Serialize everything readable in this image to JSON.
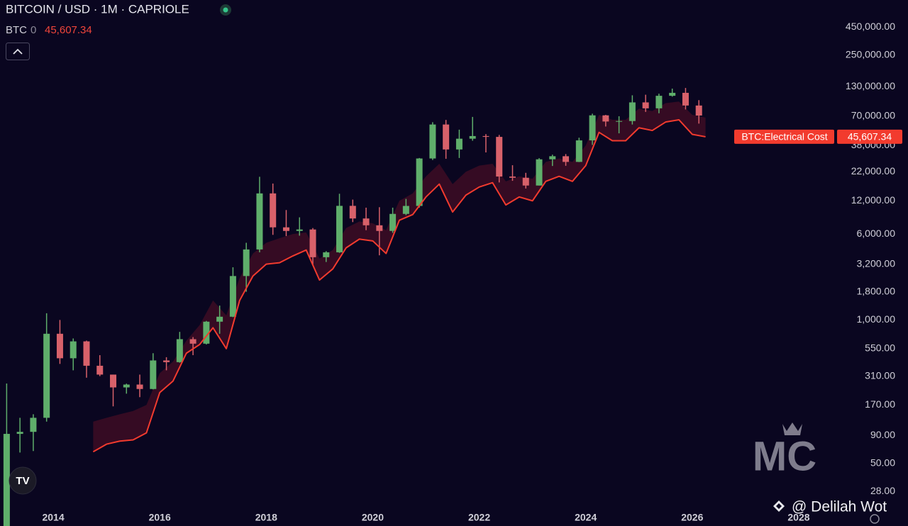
{
  "chart_data": {
    "type": "candlestick",
    "title": "BITCOIN / USD · 1M · CAPRIOLE",
    "legend_symbol": "BTC",
    "legend_flag": "0",
    "log_scale": true,
    "grid": false,
    "up_color": "#5fae6b",
    "down_color": "#d8616a",
    "xlim": [
      2013,
      2028.72
    ],
    "xticks": [
      2014,
      2016,
      2018,
      2020,
      2022,
      2024,
      2026,
      2028
    ],
    "ylim": [
      20,
      790000
    ],
    "yticks": [
      {
        "value": 28,
        "label": "28.00"
      },
      {
        "value": 50,
        "label": "50.00"
      },
      {
        "value": 90,
        "label": "90.00"
      },
      {
        "value": 170,
        "label": "170.00"
      },
      {
        "value": 310,
        "label": "310.00"
      },
      {
        "value": 550,
        "label": "550.00"
      },
      {
        "value": 1000,
        "label": "1,000.00"
      },
      {
        "value": 1800,
        "label": "1,800.00"
      },
      {
        "value": 3200,
        "label": "3,200.00"
      },
      {
        "value": 6000,
        "label": "6,000.00"
      },
      {
        "value": 12000,
        "label": "12,000.00"
      },
      {
        "value": 22000,
        "label": "22,000.00"
      },
      {
        "value": 38000,
        "label": "38,000.00"
      },
      {
        "value": 70000,
        "label": "70,000.00"
      },
      {
        "value": 130000,
        "label": "130,000.00"
      },
      {
        "value": 250000,
        "label": "250,000.00"
      },
      {
        "value": 450000,
        "label": "450,000.00"
      }
    ],
    "candles": {
      "x": [
        2013.125,
        2013.375,
        2013.625,
        2013.875,
        2014.125,
        2014.375,
        2014.625,
        2014.875,
        2015.125,
        2015.375,
        2015.625,
        2015.875,
        2016.125,
        2016.375,
        2016.625,
        2016.875,
        2017.125,
        2017.375,
        2017.625,
        2017.875,
        2018.125,
        2018.375,
        2018.625,
        2018.875,
        2019.125,
        2019.375,
        2019.625,
        2019.875,
        2020.125,
        2020.375,
        2020.625,
        2020.875,
        2021.125,
        2021.375,
        2021.625,
        2021.875,
        2022.125,
        2022.375,
        2022.625,
        2022.875,
        2023.125,
        2023.375,
        2023.625,
        2023.875,
        2024.125,
        2024.375,
        2024.625,
        2024.875,
        2025.125,
        2025.375,
        2025.625,
        2025.875,
        2026.125
      ],
      "open": [
        13,
        93,
        97,
        130,
        750,
        450,
        640,
        385,
        320,
        245,
        260,
        237,
        430,
        415,
        670,
        610,
        965,
        1070,
        2500,
        4350,
        14000,
        6900,
        6400,
        6600,
        3700,
        4100,
        10800,
        8300,
        7200,
        6400,
        9130,
        10780,
        29000,
        58900,
        35000,
        43800,
        46300,
        45500,
        19900,
        19400,
        16500,
        28500,
        30400,
        27000,
        42300,
        71300,
        62700,
        63300,
        93400,
        82500,
        107200,
        114000,
        87500
      ],
      "high": [
        266,
        130,
        140,
        1150,
        1000,
        680,
        650,
        480,
        320,
        265,
        320,
        500,
        460,
        780,
        700,
        980,
        1350,
        3000,
        5000,
        19800,
        17200,
        9900,
        8500,
        6800,
        4200,
        13900,
        12300,
        10400,
        10500,
        10400,
        12480,
        29300,
        61800,
        64800,
        52900,
        69000,
        48200,
        47400,
        25200,
        21500,
        29200,
        31400,
        31800,
        44700,
        73800,
        72000,
        70000,
        108300,
        109600,
        112000,
        124500,
        126200,
        97900
      ],
      "low": [
        13,
        63,
        65,
        120,
        400,
        350,
        300,
        310,
        165,
        215,
        200,
        235,
        350,
        410,
        480,
        600,
        750,
        1060,
        1800,
        4100,
        5900,
        5750,
        5800,
        3150,
        3350,
        4050,
        7700,
        6500,
        3850,
        6150,
        8900,
        10400,
        28100,
        28800,
        29300,
        42000,
        32900,
        17600,
        18200,
        15500,
        16500,
        24800,
        24900,
        26900,
        38500,
        56500,
        49000,
        58900,
        76600,
        74500,
        105300,
        80600,
        60000
      ],
      "close": [
        93,
        97,
        130,
        750,
        450,
        640,
        385,
        320,
        245,
        260,
        237,
        430,
        415,
        670,
        610,
        965,
        1070,
        2500,
        4350,
        14000,
        6900,
        6400,
        6600,
        3700,
        4100,
        10800,
        8300,
        7200,
        6400,
        9130,
        10780,
        29000,
        58900,
        35000,
        43800,
        46300,
        45500,
        19900,
        19400,
        16500,
        28500,
        30400,
        27000,
        42300,
        71300,
        62700,
        63300,
        93400,
        82500,
        107200,
        114000,
        87500,
        71000
      ]
    },
    "electrical_cost": {
      "name": "BTC:Electrical Cost",
      "color": "#f23b2e",
      "band_color": "#3a0c24",
      "x": [
        2014.75,
        2015,
        2015.25,
        2015.5,
        2015.75,
        2016,
        2016.25,
        2016.5,
        2016.75,
        2017,
        2017.25,
        2017.5,
        2017.75,
        2018,
        2018.25,
        2018.5,
        2018.75,
        2019,
        2019.25,
        2019.5,
        2019.75,
        2020,
        2020.25,
        2020.5,
        2020.75,
        2021,
        2021.25,
        2021.5,
        2021.75,
        2022,
        2022.25,
        2022.5,
        2022.75,
        2023,
        2023.25,
        2023.5,
        2023.75,
        2024,
        2024.25,
        2024.5,
        2024.75,
        2025,
        2025.25,
        2025.5,
        2025.75,
        2026,
        2026.25
      ],
      "values": [
        64,
        75,
        80,
        82,
        95,
        220,
        280,
        500,
        600,
        850,
        550,
        1500,
        2500,
        3200,
        3300,
        3800,
        4300,
        2300,
        2900,
        4500,
        5400,
        5200,
        4000,
        8000,
        9000,
        13000,
        17000,
        9500,
        13500,
        16000,
        17500,
        11000,
        13000,
        12000,
        18000,
        20000,
        18000,
        25000,
        50000,
        42000,
        42000,
        55000,
        52000,
        62000,
        65000,
        48000,
        45607.34
      ],
      "band_upper": [
        120,
        130,
        140,
        150,
        170,
        330,
        420,
        650,
        900,
        1500,
        1100,
        2400,
        4000,
        5000,
        5500,
        6000,
        6200,
        3600,
        4300,
        6800,
        7800,
        7500,
        6500,
        12000,
        14000,
        20000,
        26000,
        17000,
        22000,
        25000,
        26000,
        18000,
        20000,
        19000,
        27000,
        29000,
        27000,
        38000,
        72000,
        65000,
        65000,
        82000,
        78000,
        92000,
        95000,
        72000,
        68000
      ],
      "value_labels": [
        null,
        null,
        null,
        null,
        null,
        null,
        null,
        null,
        null,
        null,
        null,
        null,
        null,
        null,
        null,
        null,
        null,
        null,
        null,
        null,
        null,
        null,
        null,
        null,
        null,
        null,
        null,
        null,
        null,
        null,
        null,
        null,
        null,
        null,
        null,
        null,
        null,
        null,
        null,
        null,
        null,
        null,
        null,
        null,
        null,
        null,
        "45,607.34"
      ]
    },
    "logo_text": "MC",
    "watermark": "@ Delilah Wot"
  }
}
